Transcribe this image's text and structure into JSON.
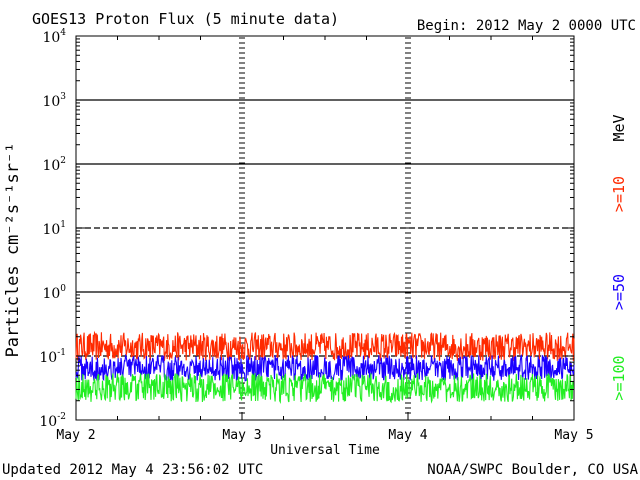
{
  "chart_data": {
    "type": "line",
    "title": "GOES13 Proton Flux (5 minute data)",
    "begin_label": "Begin: 2012 May 2 0000 UTC",
    "ylabel": "Particles cm⁻²s⁻¹sr⁻¹",
    "xlabel": "Universal Time",
    "y_scale": "log",
    "ylim": [
      0.01,
      10000
    ],
    "y_ticks": [
      {
        "value": 0.01,
        "base": "10",
        "exp": "-2"
      },
      {
        "value": 0.1,
        "base": "10",
        "exp": "-1"
      },
      {
        "value": 1,
        "base": "10",
        "exp": "0"
      },
      {
        "value": 10,
        "base": "10",
        "exp": "1"
      },
      {
        "value": 100,
        "base": "10",
        "exp": "2"
      },
      {
        "value": 1000,
        "base": "10",
        "exp": "3"
      },
      {
        "value": 10000,
        "base": "10",
        "exp": "4"
      }
    ],
    "x_range_days": [
      0,
      3
    ],
    "x_ticks": [
      {
        "day": 0,
        "label": "May 2"
      },
      {
        "day": 1,
        "label": "May 3"
      },
      {
        "day": 2,
        "label": "May 4"
      },
      {
        "day": 3,
        "label": "May 5"
      }
    ],
    "threshold_lines": [
      {
        "value": 1000,
        "style": "solid"
      },
      {
        "value": 100,
        "style": "solid"
      },
      {
        "value": 10,
        "style": "dashed"
      },
      {
        "value": 1,
        "style": "solid"
      },
      {
        "value": 0.1,
        "style": "dashed"
      }
    ],
    "series": [
      {
        "name": ">=10",
        "unit": "MeV",
        "color": "#ff2a00",
        "base": 0.14,
        "spread": 0.11,
        "jitter": 0.45
      },
      {
        "name": ">=50",
        "color": "#1a00ff",
        "base": 0.065,
        "spread": 0.025,
        "jitter": 0.4
      },
      {
        "name": ">=100",
        "color": "#22ee22",
        "base": 0.032,
        "spread": 0.014,
        "jitter": 0.45
      }
    ],
    "legend_units": "MeV",
    "grid": false
  },
  "footer": {
    "updated": "Updated 2012 May  4 23:56:02 UTC",
    "source": "NOAA/SWPC Boulder, CO USA"
  }
}
